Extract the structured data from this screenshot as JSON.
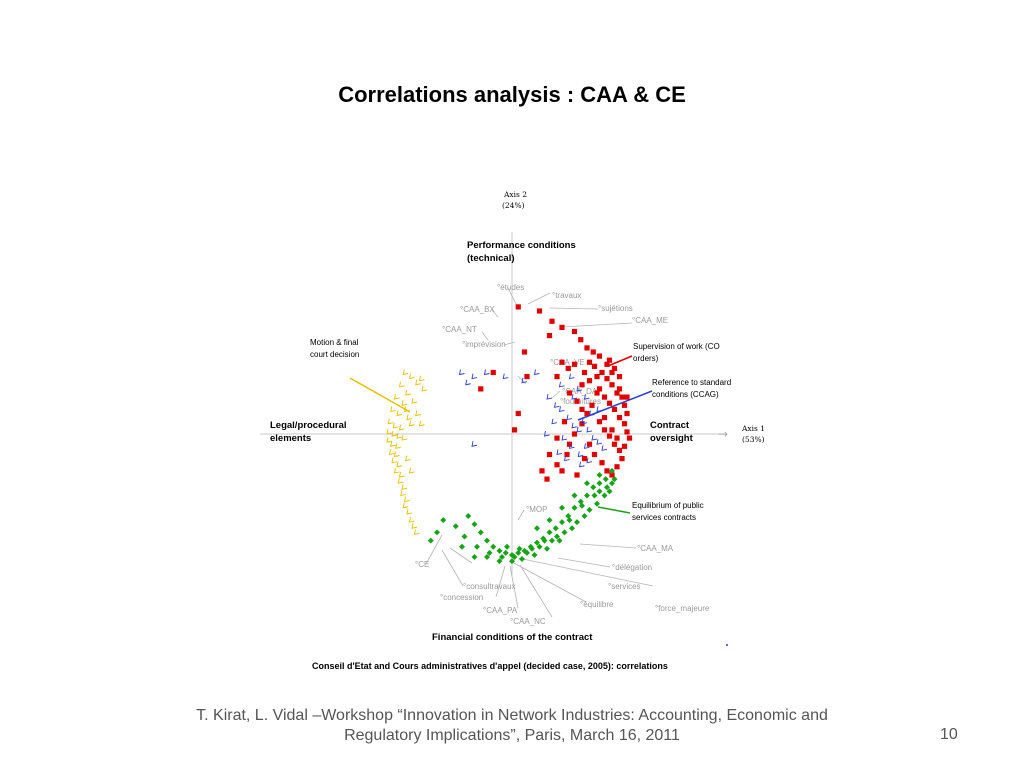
{
  "slide": {
    "title": "Correlations analysis : CAA & CE",
    "footer_line1": "T. Kirat, L. Vidal –Workshop “Innovation in Network Industries: Accounting, Economic and",
    "footer_line2": "Regulatory Implications”, Paris,  March 16, 2011",
    "page_number": "10"
  },
  "chart_data": {
    "type": "scatter",
    "caption": "Conseil d'Etat and Cours administratives d'appel  (decided case, 2005): correlations",
    "axis1": {
      "label_line1": "Axis 1",
      "label_line2": "(53%)"
    },
    "axis2": {
      "label_line1": "Axis 2",
      "label_line2": "(24%)"
    },
    "poles": {
      "top_line1": "Performance conditions",
      "top_line2": "(technical)",
      "left_line1": "Legal/procedural",
      "left_line2": "elements",
      "right_line1": "Contract",
      "right_line2": "oversight",
      "bottom": "Financial conditions of the contract"
    },
    "annotations": {
      "motion_line1": "Motion & final",
      "motion_line2": "court decision",
      "supervision_line1": "Supervision of work (CO",
      "supervision_line2": "orders)",
      "reference_line1": "Reference to standard",
      "reference_line2": "conditions (CCAG)",
      "equilibrium_line1": "Equilibrium of public",
      "equilibrium_line2": "services contracts"
    },
    "supplementary_labels": [
      "°études",
      "°travaux",
      "°sujétions",
      "°CAA_BX",
      "°CAA_NT",
      "°CAA_ME",
      "°imprévision",
      "°CAA_VE",
      "°CAA_DA",
      "°fournitures",
      "°MOP",
      "°CAA_MA",
      "°délégation",
      "°CE",
      "°consultravaux",
      "°concession",
      "°services",
      "°équilibre",
      "°CAA_PA",
      "°force_majeure",
      "°CAA_NC"
    ],
    "point_groups": [
      {
        "group": "performance / contract oversight",
        "marker": "square",
        "color": "#e00000",
        "points": [
          [
            0.05,
            0.62
          ],
          [
            0.22,
            0.6
          ],
          [
            0.32,
            0.55
          ],
          [
            0.3,
            0.48
          ],
          [
            0.4,
            0.52
          ],
          [
            0.5,
            0.5
          ],
          [
            0.55,
            0.46
          ],
          [
            0.6,
            0.42
          ],
          [
            0.65,
            0.4
          ],
          [
            0.7,
            0.38
          ],
          [
            0.78,
            0.36
          ],
          [
            0.82,
            0.32
          ],
          [
            0.86,
            0.28
          ],
          [
            0.62,
            0.35
          ],
          [
            0.66,
            0.33
          ],
          [
            0.72,
            0.3
          ],
          [
            0.76,
            0.27
          ],
          [
            0.8,
            0.24
          ],
          [
            0.84,
            0.2
          ],
          [
            0.88,
            0.18
          ],
          [
            0.9,
            0.14
          ],
          [
            0.92,
            0.1
          ],
          [
            0.7,
            0.22
          ],
          [
            0.74,
            0.18
          ],
          [
            0.78,
            0.15
          ],
          [
            0.82,
            0.12
          ],
          [
            0.86,
            0.08
          ],
          [
            0.9,
            0.05
          ],
          [
            0.92,
            0.01
          ],
          [
            0.94,
            -0.02
          ],
          [
            0.7,
            0.06
          ],
          [
            0.74,
            0.02
          ],
          [
            0.78,
            -0.01
          ],
          [
            0.82,
            -0.05
          ],
          [
            0.86,
            -0.08
          ],
          [
            0.88,
            -0.12
          ],
          [
            0.6,
            0.1
          ],
          [
            0.64,
            0.14
          ],
          [
            0.56,
            0.24
          ],
          [
            0.58,
            0.3
          ],
          [
            0.5,
            0.34
          ],
          [
            0.45,
            0.32
          ],
          [
            0.4,
            0.35
          ],
          [
            0.36,
            0.28
          ],
          [
            0.46,
            0.2
          ],
          [
            0.52,
            0.16
          ],
          [
            0.56,
            0.05
          ],
          [
            0.62,
            -0.05
          ],
          [
            0.66,
            -0.1
          ],
          [
            0.72,
            -0.14
          ],
          [
            0.76,
            -0.18
          ],
          [
            0.8,
            -0.2
          ],
          [
            0.84,
            -0.16
          ],
          [
            0.42,
            0.06
          ],
          [
            0.36,
            -0.02
          ],
          [
            0.3,
            -0.1
          ],
          [
            0.24,
            -0.18
          ],
          [
            0.28,
            -0.22
          ],
          [
            0.36,
            -0.15
          ],
          [
            0.44,
            -0.1
          ],
          [
            0.05,
            0.1
          ],
          [
            0.02,
            0.02
          ],
          [
            -0.15,
            0.3
          ],
          [
            -0.25,
            0.22
          ],
          [
            0.1,
            0.4
          ],
          [
            0.12,
            0.28
          ],
          [
            0.62,
            0.26
          ],
          [
            0.68,
            0.2
          ],
          [
            0.74,
            0.08
          ],
          [
            0.8,
            0.02
          ],
          [
            0.84,
            -0.02
          ],
          [
            0.9,
            -0.06
          ],
          [
            0.92,
            0.18
          ],
          [
            0.86,
            0.22
          ],
          [
            0.8,
            0.3
          ],
          [
            0.76,
            0.34
          ],
          [
            0.68,
            0.28
          ],
          [
            0.56,
            0.12
          ],
          [
            0.5,
            0.0
          ],
          [
            0.58,
            -0.12
          ],
          [
            0.46,
            -0.05
          ],
          [
            0.4,
            -0.18
          ],
          [
            0.52,
            -0.2
          ]
        ]
      },
      {
        "group": "legal/procedural elements",
        "marker": "tick",
        "color": "#e6c000",
        "points": [
          [
            -0.85,
            0.3
          ],
          [
            -0.8,
            0.28
          ],
          [
            -0.75,
            0.25
          ],
          [
            -0.88,
            0.24
          ],
          [
            -0.83,
            0.2
          ],
          [
            -0.92,
            0.18
          ],
          [
            -0.86,
            0.15
          ],
          [
            -0.95,
            0.12
          ],
          [
            -0.9,
            0.1
          ],
          [
            -0.82,
            0.08
          ],
          [
            -0.97,
            0.06
          ],
          [
            -0.93,
            0.04
          ],
          [
            -0.88,
            0.03
          ],
          [
            -0.98,
            0.01
          ],
          [
            -0.94,
            0.0
          ],
          [
            -0.9,
            -0.01
          ],
          [
            -0.98,
            -0.03
          ],
          [
            -0.95,
            -0.05
          ],
          [
            -0.91,
            -0.06
          ],
          [
            -0.96,
            -0.09
          ],
          [
            -0.92,
            -0.1
          ],
          [
            -0.94,
            -0.13
          ],
          [
            -0.9,
            -0.15
          ],
          [
            -0.92,
            -0.18
          ],
          [
            -0.88,
            -0.2
          ],
          [
            -0.89,
            -0.23
          ],
          [
            -0.86,
            -0.26
          ],
          [
            -0.87,
            -0.29
          ],
          [
            -0.84,
            -0.32
          ],
          [
            -0.85,
            -0.35
          ],
          [
            -0.82,
            -0.38
          ],
          [
            -0.8,
            -0.42
          ],
          [
            -0.78,
            -0.45
          ],
          [
            -0.76,
            -0.48
          ],
          [
            -0.72,
            0.27
          ],
          [
            -0.7,
            0.22
          ],
          [
            -0.78,
            0.16
          ],
          [
            -0.84,
            0.12
          ],
          [
            -0.8,
            0.05
          ],
          [
            -0.86,
            -0.02
          ],
          [
            -0.83,
            -0.12
          ],
          [
            -0.8,
            -0.18
          ],
          [
            -0.75,
            0.1
          ],
          [
            -0.72,
            0.05
          ]
        ]
      },
      {
        "group": "motion / oversight",
        "marker": "tick",
        "color": "#2a3fd0",
        "points": [
          [
            -0.4,
            0.3
          ],
          [
            -0.3,
            0.28
          ],
          [
            -0.2,
            0.3
          ],
          [
            -0.05,
            0.28
          ],
          [
            0.1,
            0.26
          ],
          [
            0.2,
            0.3
          ],
          [
            -0.35,
            0.25
          ],
          [
            0.3,
            0.18
          ],
          [
            0.36,
            0.14
          ],
          [
            0.4,
            0.12
          ],
          [
            0.46,
            0.08
          ],
          [
            0.5,
            0.04
          ],
          [
            0.54,
            0.02
          ],
          [
            0.58,
            0.06
          ],
          [
            0.62,
            0.02
          ],
          [
            0.66,
            -0.02
          ],
          [
            0.7,
            -0.04
          ],
          [
            0.74,
            -0.07
          ],
          [
            0.6,
            -0.06
          ],
          [
            0.48,
            -0.06
          ],
          [
            0.42,
            -0.02
          ],
          [
            0.38,
            -0.09
          ],
          [
            0.44,
            -0.12
          ],
          [
            0.55,
            -0.1
          ],
          [
            -0.3,
            -0.05
          ],
          [
            0.5,
            0.18
          ],
          [
            0.54,
            0.22
          ],
          [
            0.6,
            0.18
          ],
          [
            0.64,
            0.1
          ],
          [
            0.7,
            0.12
          ],
          [
            0.48,
            0.28
          ],
          [
            0.4,
            0.24
          ],
          [
            0.34,
            0.06
          ],
          [
            0.28,
            0.0
          ],
          [
            0.56,
            -0.15
          ],
          [
            0.62,
            -0.13
          ]
        ]
      },
      {
        "group": "financial conditions",
        "marker": "diamond",
        "color": "#1aa31a",
        "points": [
          [
            -0.35,
            -0.4
          ],
          [
            -0.3,
            -0.44
          ],
          [
            -0.25,
            -0.48
          ],
          [
            -0.2,
            -0.52
          ],
          [
            -0.15,
            -0.55
          ],
          [
            -0.1,
            -0.57
          ],
          [
            -0.05,
            -0.58
          ],
          [
            0.0,
            -0.59
          ],
          [
            0.05,
            -0.58
          ],
          [
            0.1,
            -0.57
          ],
          [
            0.15,
            -0.55
          ],
          [
            0.2,
            -0.53
          ],
          [
            0.25,
            -0.51
          ],
          [
            0.3,
            -0.48
          ],
          [
            0.35,
            -0.46
          ],
          [
            0.4,
            -0.43
          ],
          [
            0.45,
            -0.4
          ],
          [
            0.5,
            -0.36
          ],
          [
            0.55,
            -0.33
          ],
          [
            0.6,
            -0.3
          ],
          [
            0.65,
            -0.26
          ],
          [
            0.7,
            -0.24
          ],
          [
            0.75,
            -0.22
          ],
          [
            0.8,
            -0.24
          ],
          [
            -0.2,
            -0.6
          ],
          [
            -0.1,
            -0.62
          ],
          [
            0.0,
            -0.62
          ],
          [
            0.08,
            -0.61
          ],
          [
            0.18,
            -0.59
          ],
          [
            0.28,
            -0.56
          ],
          [
            0.38,
            -0.52
          ],
          [
            0.48,
            -0.46
          ],
          [
            0.58,
            -0.4
          ],
          [
            0.68,
            -0.34
          ],
          [
            0.74,
            -0.3
          ],
          [
            0.78,
            -0.28
          ],
          [
            0.62,
            -0.37
          ],
          [
            0.52,
            -0.43
          ],
          [
            0.42,
            -0.48
          ],
          [
            0.32,
            -0.52
          ],
          [
            0.22,
            -0.55
          ],
          [
            0.12,
            -0.58
          ],
          [
            0.02,
            -0.6
          ],
          [
            -0.08,
            -0.6
          ],
          [
            -0.18,
            -0.58
          ],
          [
            -0.28,
            -0.55
          ],
          [
            -0.38,
            -0.5
          ],
          [
            -0.45,
            -0.45
          ],
          [
            -0.55,
            -0.42
          ],
          [
            -0.6,
            -0.48
          ],
          [
            -0.65,
            -0.52
          ],
          [
            -0.4,
            -0.55
          ],
          [
            -0.3,
            -0.6
          ],
          [
            0.7,
            -0.28
          ],
          [
            0.76,
            -0.26
          ],
          [
            0.82,
            -0.22
          ],
          [
            0.66,
            -0.3
          ],
          [
            0.56,
            -0.35
          ],
          [
            0.46,
            -0.42
          ],
          [
            0.36,
            -0.5
          ],
          [
            0.26,
            -0.52
          ],
          [
            0.16,
            -0.56
          ],
          [
            0.06,
            -0.56
          ],
          [
            -0.04,
            -0.55
          ],
          [
            0.4,
            -0.36
          ],
          [
            0.5,
            -0.3
          ],
          [
            0.6,
            -0.24
          ],
          [
            0.7,
            -0.2
          ],
          [
            0.8,
            -0.18
          ],
          [
            0.3,
            -0.42
          ],
          [
            0.2,
            -0.46
          ]
        ]
      }
    ]
  }
}
